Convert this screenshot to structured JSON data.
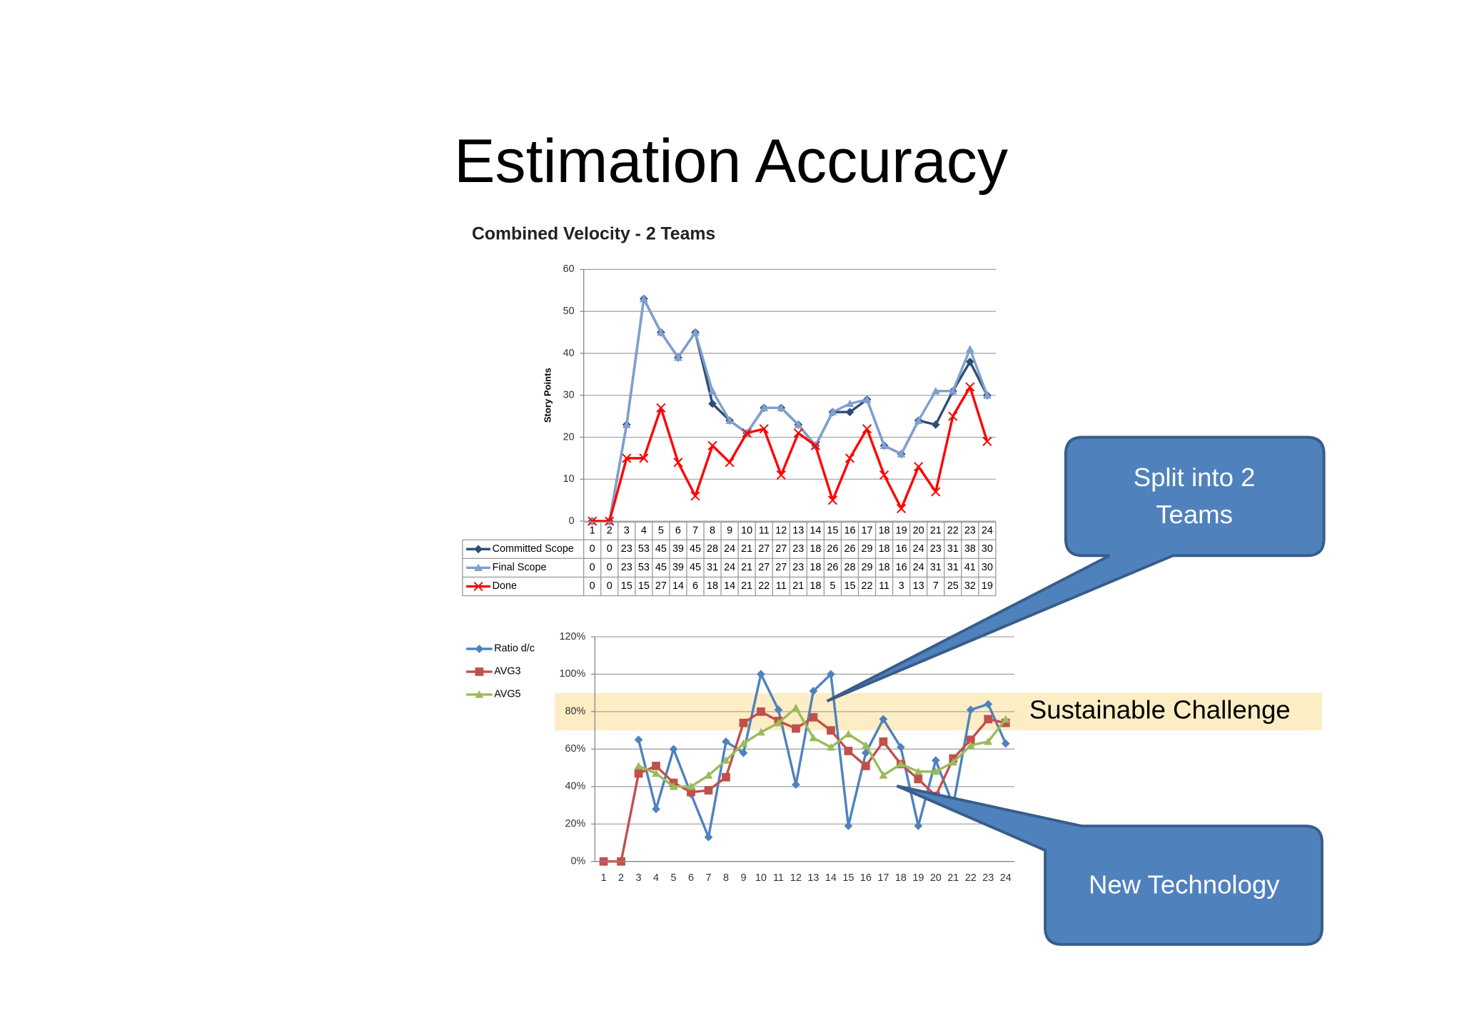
{
  "title": "Estimation Accuracy",
  "chart_data": [
    {
      "type": "line",
      "title": "Combined Velocity - 2 Teams",
      "y_label": "Story Points",
      "categories": [
        "1",
        "2",
        "3",
        "4",
        "5",
        "6",
        "7",
        "8",
        "9",
        "10",
        "11",
        "12",
        "13",
        "14",
        "15",
        "16",
        "17",
        "18",
        "19",
        "20",
        "21",
        "22",
        "23",
        "24"
      ],
      "series": [
        {
          "name": "Committed Scope",
          "color": "#2c4d75",
          "marker": "diamond",
          "values": [
            0,
            0,
            23,
            53,
            45,
            39,
            45,
            28,
            24,
            21,
            27,
            27,
            23,
            18,
            26,
            26,
            29,
            18,
            16,
            24,
            23,
            31,
            38,
            30
          ]
        },
        {
          "name": "Final Scope",
          "color": "#7f9fd0",
          "marker": "triangle",
          "values": [
            0,
            0,
            23,
            53,
            45,
            39,
            45,
            31,
            24,
            21,
            27,
            27,
            23,
            18,
            26,
            28,
            29,
            18,
            16,
            24,
            31,
            31,
            41,
            30
          ]
        },
        {
          "name": "Done",
          "color": "#ff0000",
          "marker": "x",
          "values": [
            0,
            0,
            15,
            15,
            27,
            14,
            6,
            18,
            14,
            21,
            22,
            11,
            21,
            18,
            5,
            15,
            22,
            11,
            3,
            13,
            7,
            25,
            32,
            19
          ]
        }
      ],
      "ylim": [
        0,
        60
      ],
      "yticks": [
        0,
        10,
        20,
        30,
        40,
        50,
        60
      ],
      "grid": true,
      "data_table": true
    },
    {
      "type": "line",
      "categories": [
        "1",
        "2",
        "3",
        "4",
        "5",
        "6",
        "7",
        "8",
        "9",
        "10",
        "11",
        "12",
        "13",
        "14",
        "15",
        "16",
        "17",
        "18",
        "19",
        "20",
        "21",
        "22",
        "23",
        "24"
      ],
      "series": [
        {
          "name": "Ratio d/c",
          "color": "#4f81bd",
          "marker": "diamond",
          "values": [
            null,
            null,
            65,
            28,
            60,
            36,
            13,
            64,
            58,
            100,
            81,
            41,
            91,
            100,
            19,
            58,
            76,
            61,
            19,
            54,
            30,
            81,
            84,
            63
          ]
        },
        {
          "name": "AVG3",
          "color": "#c0504d",
          "marker": "square",
          "values": [
            0,
            0,
            47,
            51,
            42,
            37,
            38,
            45,
            74,
            80,
            75,
            71,
            77,
            70,
            59,
            51,
            64,
            52,
            44,
            35,
            55,
            65,
            76,
            74
          ]
        },
        {
          "name": "AVG5",
          "color": "#9bbb59",
          "marker": "triangle",
          "values": [
            null,
            null,
            51,
            47,
            40,
            40,
            46,
            54,
            63,
            69,
            74,
            82,
            66,
            61,
            68,
            62,
            46,
            52,
            48,
            48,
            53,
            62,
            64,
            76
          ]
        }
      ],
      "ylim": [
        0,
        120
      ],
      "yticks": [
        {
          "value": 0,
          "label": "0%"
        },
        {
          "value": 20,
          "label": "20%"
        },
        {
          "value": 40,
          "label": "40%"
        },
        {
          "value": 60,
          "label": "60%"
        },
        {
          "value": 80,
          "label": "80%"
        },
        {
          "value": 100,
          "label": "100%"
        },
        {
          "value": 120,
          "label": "120%"
        }
      ],
      "grid": true,
      "band": {
        "from": 70,
        "to": 90,
        "label": "Sustainable Challenge",
        "color": "#fde9b6"
      }
    }
  ],
  "callouts": [
    {
      "lines": [
        "Split into 2",
        "Teams"
      ]
    },
    {
      "lines": [
        "New Technology"
      ]
    }
  ]
}
